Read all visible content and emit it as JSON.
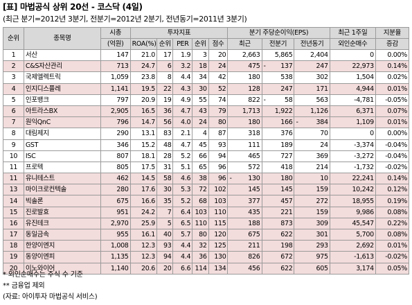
{
  "title": "[표] 마법공식 상위 20선   - 코스닥 (4일)",
  "subtitle": "(최근 분기=2012년 3분기, 전분기=2012년 2분기, 전년동기=2011년 3분기)",
  "headers": {
    "rank": "순위",
    "name": "종목명",
    "mktcap": "시총",
    "mktcap_unit": "(억원)",
    "invest": "투자지표",
    "roa": "ROA(%)",
    "roa_rank": "순위",
    "per": "PER",
    "per_rank": "순위",
    "score": "점수",
    "eps": "분기 주당순이익(EPS)",
    "eps_recent": "최근",
    "eps_prev": "전분기",
    "eps_yoy": "전년동기",
    "foreign1": "최근 1주일",
    "foreign2": "외인순매수",
    "share1": "지분율",
    "share2": "증감"
  },
  "rows": [
    {
      "rank": "1",
      "name": "서산",
      "mktcap": "147",
      "roa": "21.0",
      "roa_rank": "17",
      "per": "1.9",
      "per_rank": "3",
      "score": "20",
      "eps_recent": "2,663",
      "eps_prev": "5,865",
      "eps_yoy": "2,404",
      "foreign": "0",
      "share": "0.00%"
    },
    {
      "rank": "2",
      "name": "C&S자산관리",
      "mktcap": "713",
      "roa": "24.7",
      "roa_rank": "6",
      "per": "3.2",
      "per_rank": "18",
      "score": "24",
      "eps_recent": "475",
      "eps_prev": "137",
      "eps_prev_minus": "-",
      "eps_yoy": "247",
      "foreign": "22,973",
      "share": "0.14%"
    },
    {
      "rank": "3",
      "name": "국제엘렉트릭",
      "mktcap": "1,059",
      "roa": "23.8",
      "roa_rank": "8",
      "per": "4.4",
      "per_rank": "34",
      "score": "42",
      "eps_recent": "180",
      "eps_prev": "538",
      "eps_yoy": "302",
      "foreign": "1,504",
      "share": "0.02%"
    },
    {
      "rank": "4",
      "name": "인지디스플레",
      "mktcap": "1,141",
      "roa": "19.5",
      "roa_rank": "22",
      "per": "4.3",
      "per_rank": "30",
      "score": "52",
      "eps_recent": "128",
      "eps_prev": "247",
      "eps_yoy": "171",
      "foreign": "4,944",
      "share": "0.01%"
    },
    {
      "rank": "5",
      "name": "인포뱅크",
      "mktcap": "797",
      "roa": "20.9",
      "roa_rank": "19",
      "per": "4.9",
      "per_rank": "55",
      "score": "74",
      "eps_recent": "822",
      "eps_prev": "58",
      "eps_prev_minus": "-",
      "eps_yoy": "563",
      "foreign": "-4,781",
      "share": "-0.05%"
    },
    {
      "rank": "6",
      "name": "아트라스BX",
      "mktcap": "2,905",
      "roa": "16.5",
      "roa_rank": "36",
      "per": "4.7",
      "per_rank": "43",
      "score": "79",
      "eps_recent": "1,713",
      "eps_prev": "1,922",
      "eps_yoy": "1,126",
      "foreign": "6,371",
      "share": "0.07%"
    },
    {
      "rank": "7",
      "name": "원익QnC",
      "mktcap": "796",
      "roa": "14.7",
      "roa_rank": "56",
      "per": "4.0",
      "per_rank": "24",
      "score": "80",
      "eps_recent": "180",
      "eps_prev": "166",
      "eps_yoy": "384",
      "eps_yoy_minus": "-",
      "foreign": "1,109",
      "share": "0.01%"
    },
    {
      "rank": "8",
      "name": "대림제지",
      "mktcap": "290",
      "roa": "13.1",
      "roa_rank": "83",
      "per": "2.1",
      "per_rank": "4",
      "score": "87",
      "eps_recent": "318",
      "eps_prev": "376",
      "eps_yoy": "70",
      "foreign": "0",
      "share": "0.00%"
    },
    {
      "rank": "9",
      "name": "GST",
      "mktcap": "346",
      "roa": "15.2",
      "roa_rank": "48",
      "per": "4.7",
      "per_rank": "45",
      "score": "93",
      "eps_recent": "111",
      "eps_prev": "189",
      "eps_yoy": "24",
      "foreign": "-3,374",
      "share": "-0.04%"
    },
    {
      "rank": "10",
      "name": "ISC",
      "mktcap": "807",
      "roa": "18.1",
      "roa_rank": "28",
      "per": "5.2",
      "per_rank": "66",
      "score": "94",
      "eps_recent": "465",
      "eps_prev": "727",
      "eps_yoy": "369",
      "foreign": "-3,272",
      "share": "-0.04%"
    },
    {
      "rank": "11",
      "name": "프로텍",
      "mktcap": "805",
      "roa": "17.5",
      "roa_rank": "31",
      "per": "5.1",
      "per_rank": "65",
      "score": "96",
      "eps_recent": "572",
      "eps_prev": "418",
      "eps_yoy": "214",
      "foreign": "-1,732",
      "share": "-0.02%"
    },
    {
      "rank": "11",
      "name": "유니테스트",
      "mktcap": "462",
      "roa": "14.5",
      "roa_rank": "58",
      "per": "4.6",
      "per_rank": "38",
      "score": "96",
      "eps_recent": "130",
      "eps_recent_minus": "-",
      "eps_prev": "180",
      "eps_yoy": "10",
      "foreign": "22,241",
      "share": "0.14%"
    },
    {
      "rank": "13",
      "name": "마이크로컨텍솔",
      "mktcap": "280",
      "roa": "17.6",
      "roa_rank": "30",
      "per": "5.3",
      "per_rank": "72",
      "score": "102",
      "eps_recent": "145",
      "eps_prev": "145",
      "eps_yoy": "159",
      "foreign": "10,242",
      "share": "0.12%"
    },
    {
      "rank": "14",
      "name": "빅솔론",
      "mktcap": "675",
      "roa": "16.6",
      "roa_rank": "35",
      "per": "5.2",
      "per_rank": "68",
      "score": "103",
      "eps_recent": "377",
      "eps_prev": "457",
      "eps_yoy": "272",
      "foreign": "18,955",
      "share": "0.19%"
    },
    {
      "rank": "15",
      "name": "진로발효",
      "mktcap": "951",
      "roa": "24.2",
      "roa_rank": "7",
      "per": "6.4",
      "per_rank": "103",
      "score": "110",
      "eps_recent": "435",
      "eps_prev": "221",
      "eps_yoy": "159",
      "foreign": "9,986",
      "share": "0.08%"
    },
    {
      "rank": "16",
      "name": "유진테크",
      "mktcap": "2,970",
      "roa": "25.9",
      "roa_rank": "5",
      "per": "6.5",
      "per_rank": "110",
      "score": "115",
      "eps_recent": "188",
      "eps_prev": "873",
      "eps_yoy": "309",
      "foreign": "45,547",
      "share": "0.22%"
    },
    {
      "rank": "17",
      "name": "동일금속",
      "mktcap": "955",
      "roa": "16.1",
      "roa_rank": "40",
      "per": "5.7",
      "per_rank": "80",
      "score": "120",
      "eps_recent": "675",
      "eps_prev": "622",
      "eps_yoy": "301",
      "foreign": "5,700",
      "share": "0.08%"
    },
    {
      "rank": "18",
      "name": "한양이엔지",
      "mktcap": "1,008",
      "roa": "12.3",
      "roa_rank": "93",
      "per": "4.4",
      "per_rank": "32",
      "score": "125",
      "eps_recent": "211",
      "eps_prev": "198",
      "eps_yoy": "293",
      "foreign": "2,692",
      "share": "0.01%"
    },
    {
      "rank": "19",
      "name": "동양이엔피",
      "mktcap": "1,135",
      "roa": "12.3",
      "roa_rank": "94",
      "per": "4.4",
      "per_rank": "36",
      "score": "130",
      "eps_recent": "826",
      "eps_prev": "672",
      "eps_yoy": "975",
      "foreign": "-1,613",
      "share": "-0.02%"
    },
    {
      "rank": "20",
      "name": "이노와이어",
      "mktcap": "1,140",
      "roa": "20.6",
      "roa_rank": "20",
      "per": "6.6",
      "per_rank": "114",
      "score": "134",
      "eps_recent": "456",
      "eps_prev": "622",
      "eps_yoy": "605",
      "foreign": "3,174",
      "share": "0.05%"
    }
  ],
  "notes": [
    "* 외인순매수는 주식 수 기준",
    "** 금융업 제외",
    "(자료: 아이투자 마법공식 서비스)"
  ],
  "colors": {
    "header_bg": "#d9d9d9",
    "highlight_row_bg": "#f3dcdc",
    "border": "#9a9a9a"
  }
}
